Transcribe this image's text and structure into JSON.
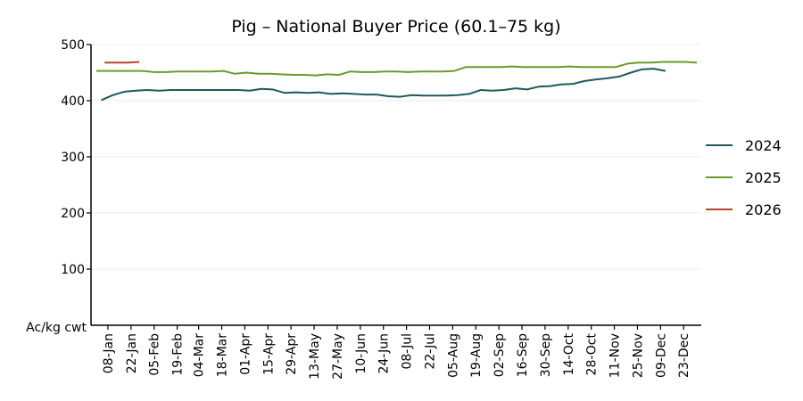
{
  "chart_data": {
    "type": "line",
    "title": "Pig – National Buyer Price (60.1–75 kg)",
    "ylabel": "Ac/kg cwt",
    "xlabel": "",
    "ylim": [
      0,
      500
    ],
    "yticks": [
      "100",
      "200",
      "300",
      "400",
      "500"
    ],
    "grid": true,
    "legend_position": "right",
    "x_tick_labels": [
      "08-Jan",
      "22-Jan",
      "05-Feb",
      "19-Feb",
      "04-Mar",
      "18-Mar",
      "01-Apr",
      "15-Apr",
      "29-Apr",
      "13-May",
      "27-May",
      "10-Jun",
      "24-Jun",
      "08-Jul",
      "22-Jul",
      "05-Aug",
      "19-Aug",
      "02-Sep",
      "16-Sep",
      "30-Sep",
      "14-Oct",
      "28-Oct",
      "11-Nov",
      "25-Nov",
      "09-Dec",
      "23-Dec"
    ],
    "series": [
      {
        "name": "2024",
        "color": "#1f5a5a",
        "x": [
          "04-Jan",
          "11-Jan",
          "18-Jan",
          "25-Jan",
          "01-Feb",
          "08-Feb",
          "15-Feb",
          "22-Feb",
          "29-Feb",
          "07-Mar",
          "14-Mar",
          "21-Mar",
          "28-Mar",
          "04-Apr",
          "11-Apr",
          "18-Apr",
          "25-Apr",
          "02-May",
          "09-May",
          "16-May",
          "23-May",
          "30-May",
          "06-Jun",
          "13-Jun",
          "20-Jun",
          "27-Jun",
          "04-Jul",
          "11-Jul",
          "18-Jul",
          "25-Jul",
          "01-Aug",
          "08-Aug",
          "15-Aug",
          "22-Aug",
          "29-Aug",
          "05-Sep",
          "12-Sep",
          "19-Sep",
          "26-Sep",
          "03-Oct",
          "10-Oct",
          "17-Oct",
          "24-Oct",
          "31-Oct",
          "07-Nov",
          "14-Nov",
          "21-Nov",
          "28-Nov",
          "05-Dec",
          "12-Dec"
        ],
        "values": [
          401,
          410,
          416,
          418,
          419,
          418,
          419,
          419,
          419,
          419,
          419,
          419,
          419,
          418,
          421,
          420,
          414,
          415,
          414,
          415,
          412,
          413,
          412,
          411,
          411,
          408,
          407,
          410,
          409,
          409,
          409,
          410,
          412,
          419,
          418,
          419,
          422,
          420,
          425,
          426,
          429,
          430,
          435,
          438,
          440,
          443,
          450,
          456,
          457,
          453
        ]
      },
      {
        "name": "2025",
        "color": "#6b9a2a",
        "x": [
          "01-Jan",
          "08-Jan",
          "15-Jan",
          "22-Jan",
          "29-Jan",
          "05-Feb",
          "12-Feb",
          "19-Feb",
          "26-Feb",
          "05-Mar",
          "12-Mar",
          "19-Mar",
          "26-Mar",
          "02-Apr",
          "09-Apr",
          "16-Apr",
          "23-Apr",
          "30-Apr",
          "07-May",
          "14-May",
          "21-May",
          "28-May",
          "04-Jun",
          "11-Jun",
          "18-Jun",
          "25-Jun",
          "02-Jul",
          "09-Jul",
          "16-Jul",
          "23-Jul",
          "30-Jul",
          "06-Aug",
          "13-Aug",
          "20-Aug",
          "27-Aug",
          "03-Sep",
          "10-Sep",
          "17-Sep",
          "24-Sep",
          "01-Oct",
          "08-Oct",
          "15-Oct",
          "22-Oct",
          "29-Oct",
          "05-Nov",
          "12-Nov",
          "19-Nov",
          "26-Nov",
          "03-Dec",
          "10-Dec",
          "17-Dec",
          "24-Dec",
          "31-Dec"
        ],
        "values": [
          453,
          453,
          453,
          453,
          453,
          451,
          451,
          452,
          452,
          452,
          452,
          453,
          448,
          450,
          448,
          448,
          447,
          446,
          446,
          445,
          447,
          446,
          452,
          451,
          451,
          452,
          452,
          451,
          452,
          452,
          452,
          453,
          460,
          460,
          460,
          460,
          461,
          460,
          460,
          460,
          460,
          461,
          460,
          460,
          460,
          460,
          466,
          468,
          468,
          469,
          469,
          469,
          468
        ]
      },
      {
        "name": "2026",
        "color": "#b5452b",
        "x": [
          "06-Jan",
          "13-Jan",
          "20-Jan",
          "27-Jan"
        ],
        "values": [
          468,
          468,
          468,
          469
        ]
      }
    ]
  }
}
